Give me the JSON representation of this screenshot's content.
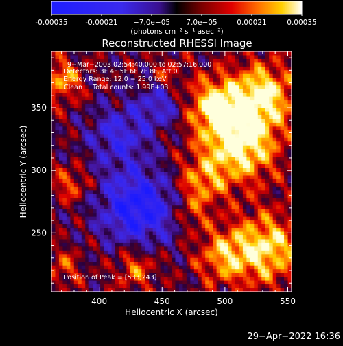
{
  "chart_data": {
    "type": "heatmap",
    "title": "Reconstructed RHESSI Image",
    "xlabel": "Heliocentric X (arcsec)",
    "ylabel": "Heliocentric Y (arcsec)",
    "xlim": [
      362,
      553
    ],
    "ylim": [
      203,
      395
    ],
    "x_ticks": [
      400,
      450,
      500,
      550
    ],
    "y_ticks": [
      250,
      300,
      350
    ],
    "colorbar": {
      "range": [
        -0.00035,
        0.00035
      ],
      "tick_values": [
        -0.00035,
        -0.00021,
        -7e-05,
        7e-05,
        0.00021,
        0.00035
      ],
      "tick_labels": [
        "-0.00035",
        "-0.00021",
        "−7.0e−05",
        "7.0e−05",
        "0.00021",
        "0.00035"
      ],
      "unit_label": "(photons cm⁻² s⁻¹ asec⁻²)"
    },
    "grid": false,
    "peak": [
      533,
      243
    ],
    "colors": {
      "negative": "#1414ff",
      "zero": "#000000",
      "positive_mid": "#ff2a00",
      "positive_high": "#ffffff"
    }
  },
  "annotations": {
    "time": "9−Mar−2003 02:54:40.000 to 02:57:16.000",
    "detectors": "Detectors: 3F 4F 5F 6F 7F 8F, Att 0",
    "energy": "Energy Range: 12.0 − 25.0 keV",
    "clean": "Clean     Total counts: 1.99E+03",
    "peak_text": "Position of Peak = [533,243]"
  },
  "timestamp": "29−Apr−2022 16:36"
}
